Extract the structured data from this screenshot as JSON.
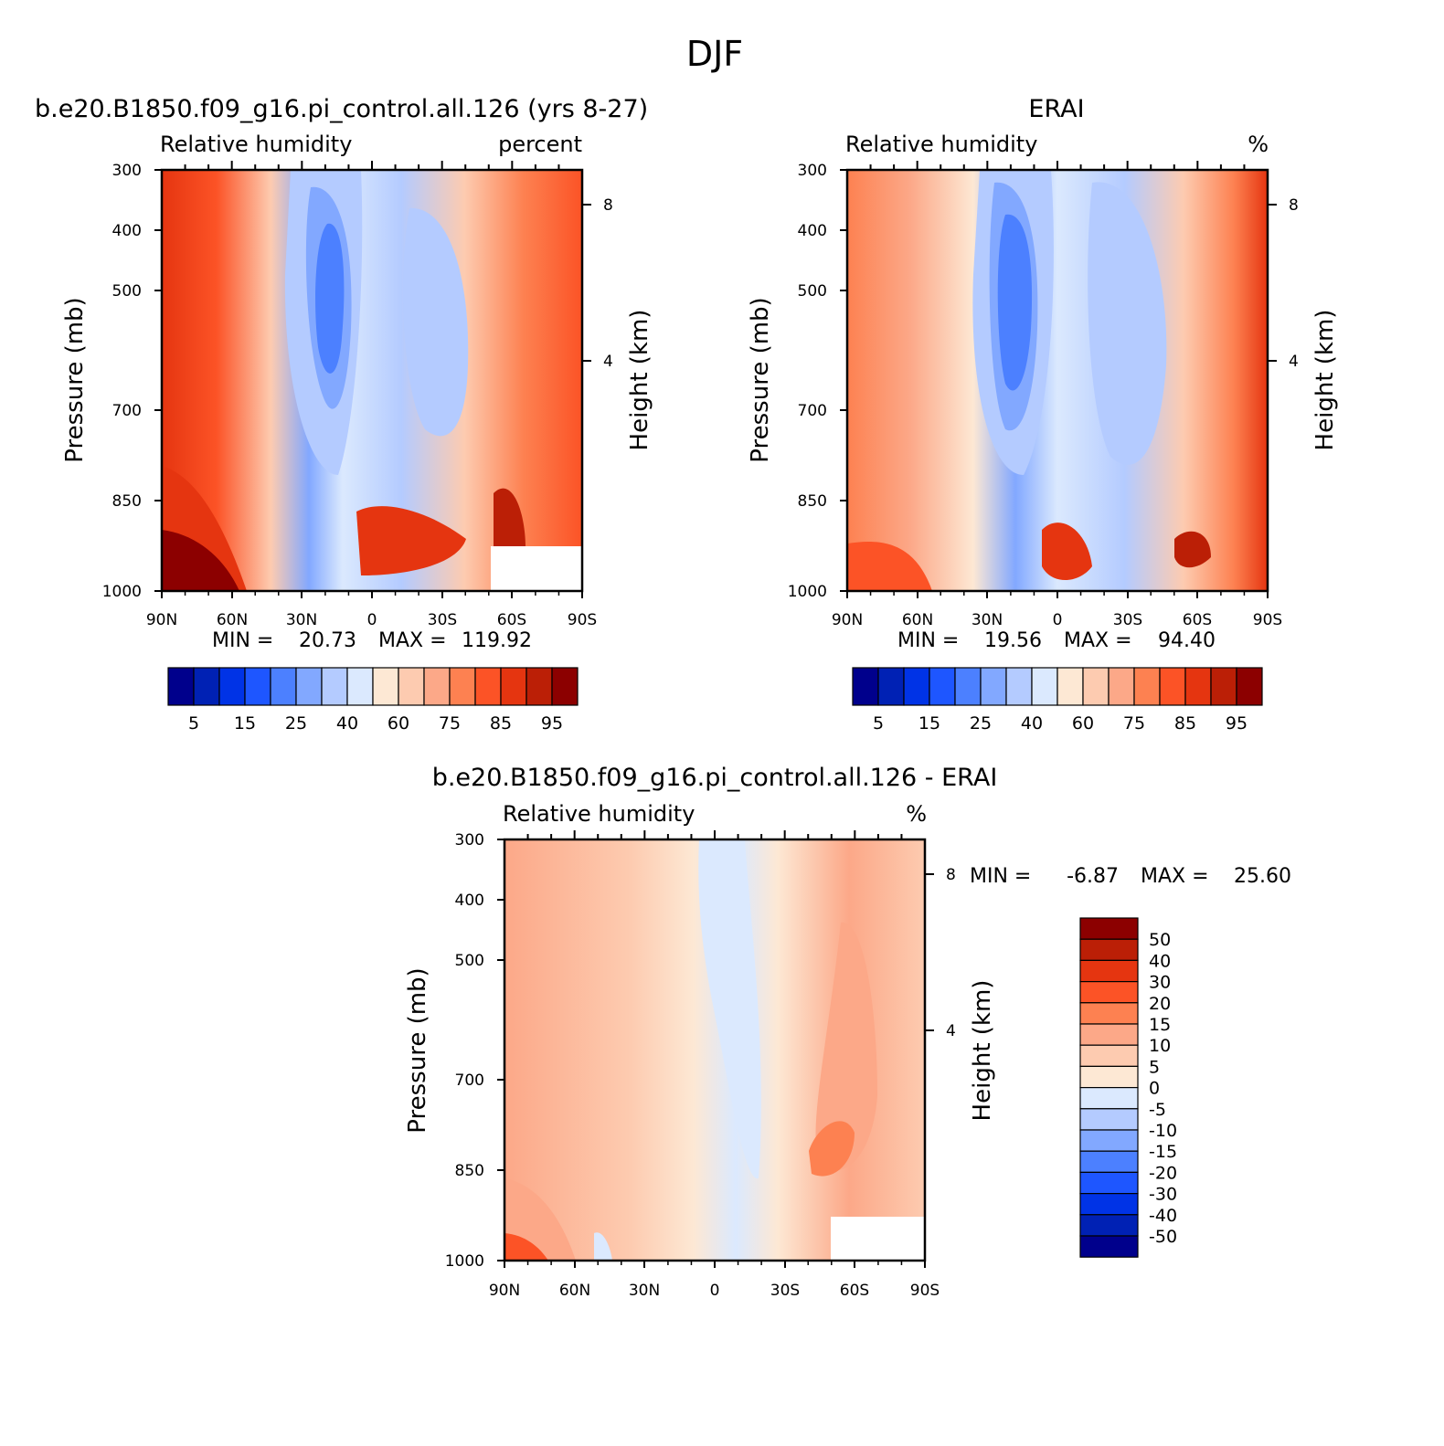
{
  "page_title": "DJF",
  "colors": {
    "rh_levels": [
      "#00008c",
      "#0021b4",
      "#0033e6",
      "#1e56ff",
      "#4c80ff",
      "#82a8ff",
      "#b4cbff",
      "#dbe9fe",
      "#fde8d4",
      "#fdcbb0",
      "#fca888",
      "#fd8151",
      "#fc5326",
      "#e53510",
      "#bb1f06",
      "#8c0000"
    ],
    "diff_levels": [
      "#8c0000",
      "#bb1f06",
      "#e53510",
      "#fc5326",
      "#fd8151",
      "#fca888",
      "#fdcbb0",
      "#fde8d4",
      "#dbe9fe",
      "#b4cbff",
      "#82a8ff",
      "#4c80ff",
      "#1e56ff",
      "#0033e6",
      "#0021b4",
      "#00008c"
    ]
  },
  "chart_data": [
    {
      "type": "heatmap",
      "panel_title": "b.e20.B1850.f09_g16.pi_control.all.126 (yrs 8-27)",
      "left_subtitle": "Relative humidity",
      "right_subtitle": "percent",
      "xlabel": "",
      "ylabel": "Pressure (mb)",
      "ylabel_right": "Height (km)",
      "x_ticks": [
        "90N",
        "60N",
        "30N",
        "0",
        "30S",
        "60S",
        "90S"
      ],
      "y_ticks": [
        "300",
        "400",
        "500",
        "700",
        "850",
        "1000"
      ],
      "y_right_ticks": [
        "8",
        "4"
      ],
      "min_label": "MIN =",
      "min_value": "20.73",
      "max_label": "MAX =",
      "max_value": "119.92",
      "colorbar_labels": [
        "5",
        "15",
        "25",
        "40",
        "60",
        "75",
        "85",
        "95"
      ]
    },
    {
      "type": "heatmap",
      "panel_title": "ERAI",
      "left_subtitle": "Relative humidity",
      "right_subtitle": "%",
      "xlabel": "",
      "ylabel": "Pressure (mb)",
      "ylabel_right": "Height (km)",
      "x_ticks": [
        "90N",
        "60N",
        "30N",
        "0",
        "30S",
        "60S",
        "90S"
      ],
      "y_ticks": [
        "300",
        "400",
        "500",
        "700",
        "850",
        "1000"
      ],
      "y_right_ticks": [
        "8",
        "4"
      ],
      "min_label": "MIN =",
      "min_value": "19.56",
      "max_label": "MAX =",
      "max_value": "94.40",
      "colorbar_labels": [
        "5",
        "15",
        "25",
        "40",
        "60",
        "75",
        "85",
        "95"
      ]
    },
    {
      "type": "heatmap",
      "panel_title": "b.e20.B1850.f09_g16.pi_control.all.126 - ERAI",
      "left_subtitle": "Relative humidity",
      "right_subtitle": "%",
      "xlabel": "",
      "ylabel": "Pressure (mb)",
      "ylabel_right": "Height (km)",
      "x_ticks": [
        "90N",
        "60N",
        "30N",
        "0",
        "30S",
        "60S",
        "90S"
      ],
      "y_ticks": [
        "300",
        "400",
        "500",
        "700",
        "850",
        "1000"
      ],
      "y_right_ticks": [
        "8",
        "4"
      ],
      "min_label": "MIN =",
      "min_value": "-6.87",
      "max_label": "MAX =",
      "max_value": "25.60",
      "colorbar_labels": [
        "50",
        "40",
        "30",
        "20",
        "15",
        "10",
        "5",
        "0",
        "-5",
        "-10",
        "-15",
        "-20",
        "-30",
        "-40",
        "-50"
      ]
    }
  ]
}
